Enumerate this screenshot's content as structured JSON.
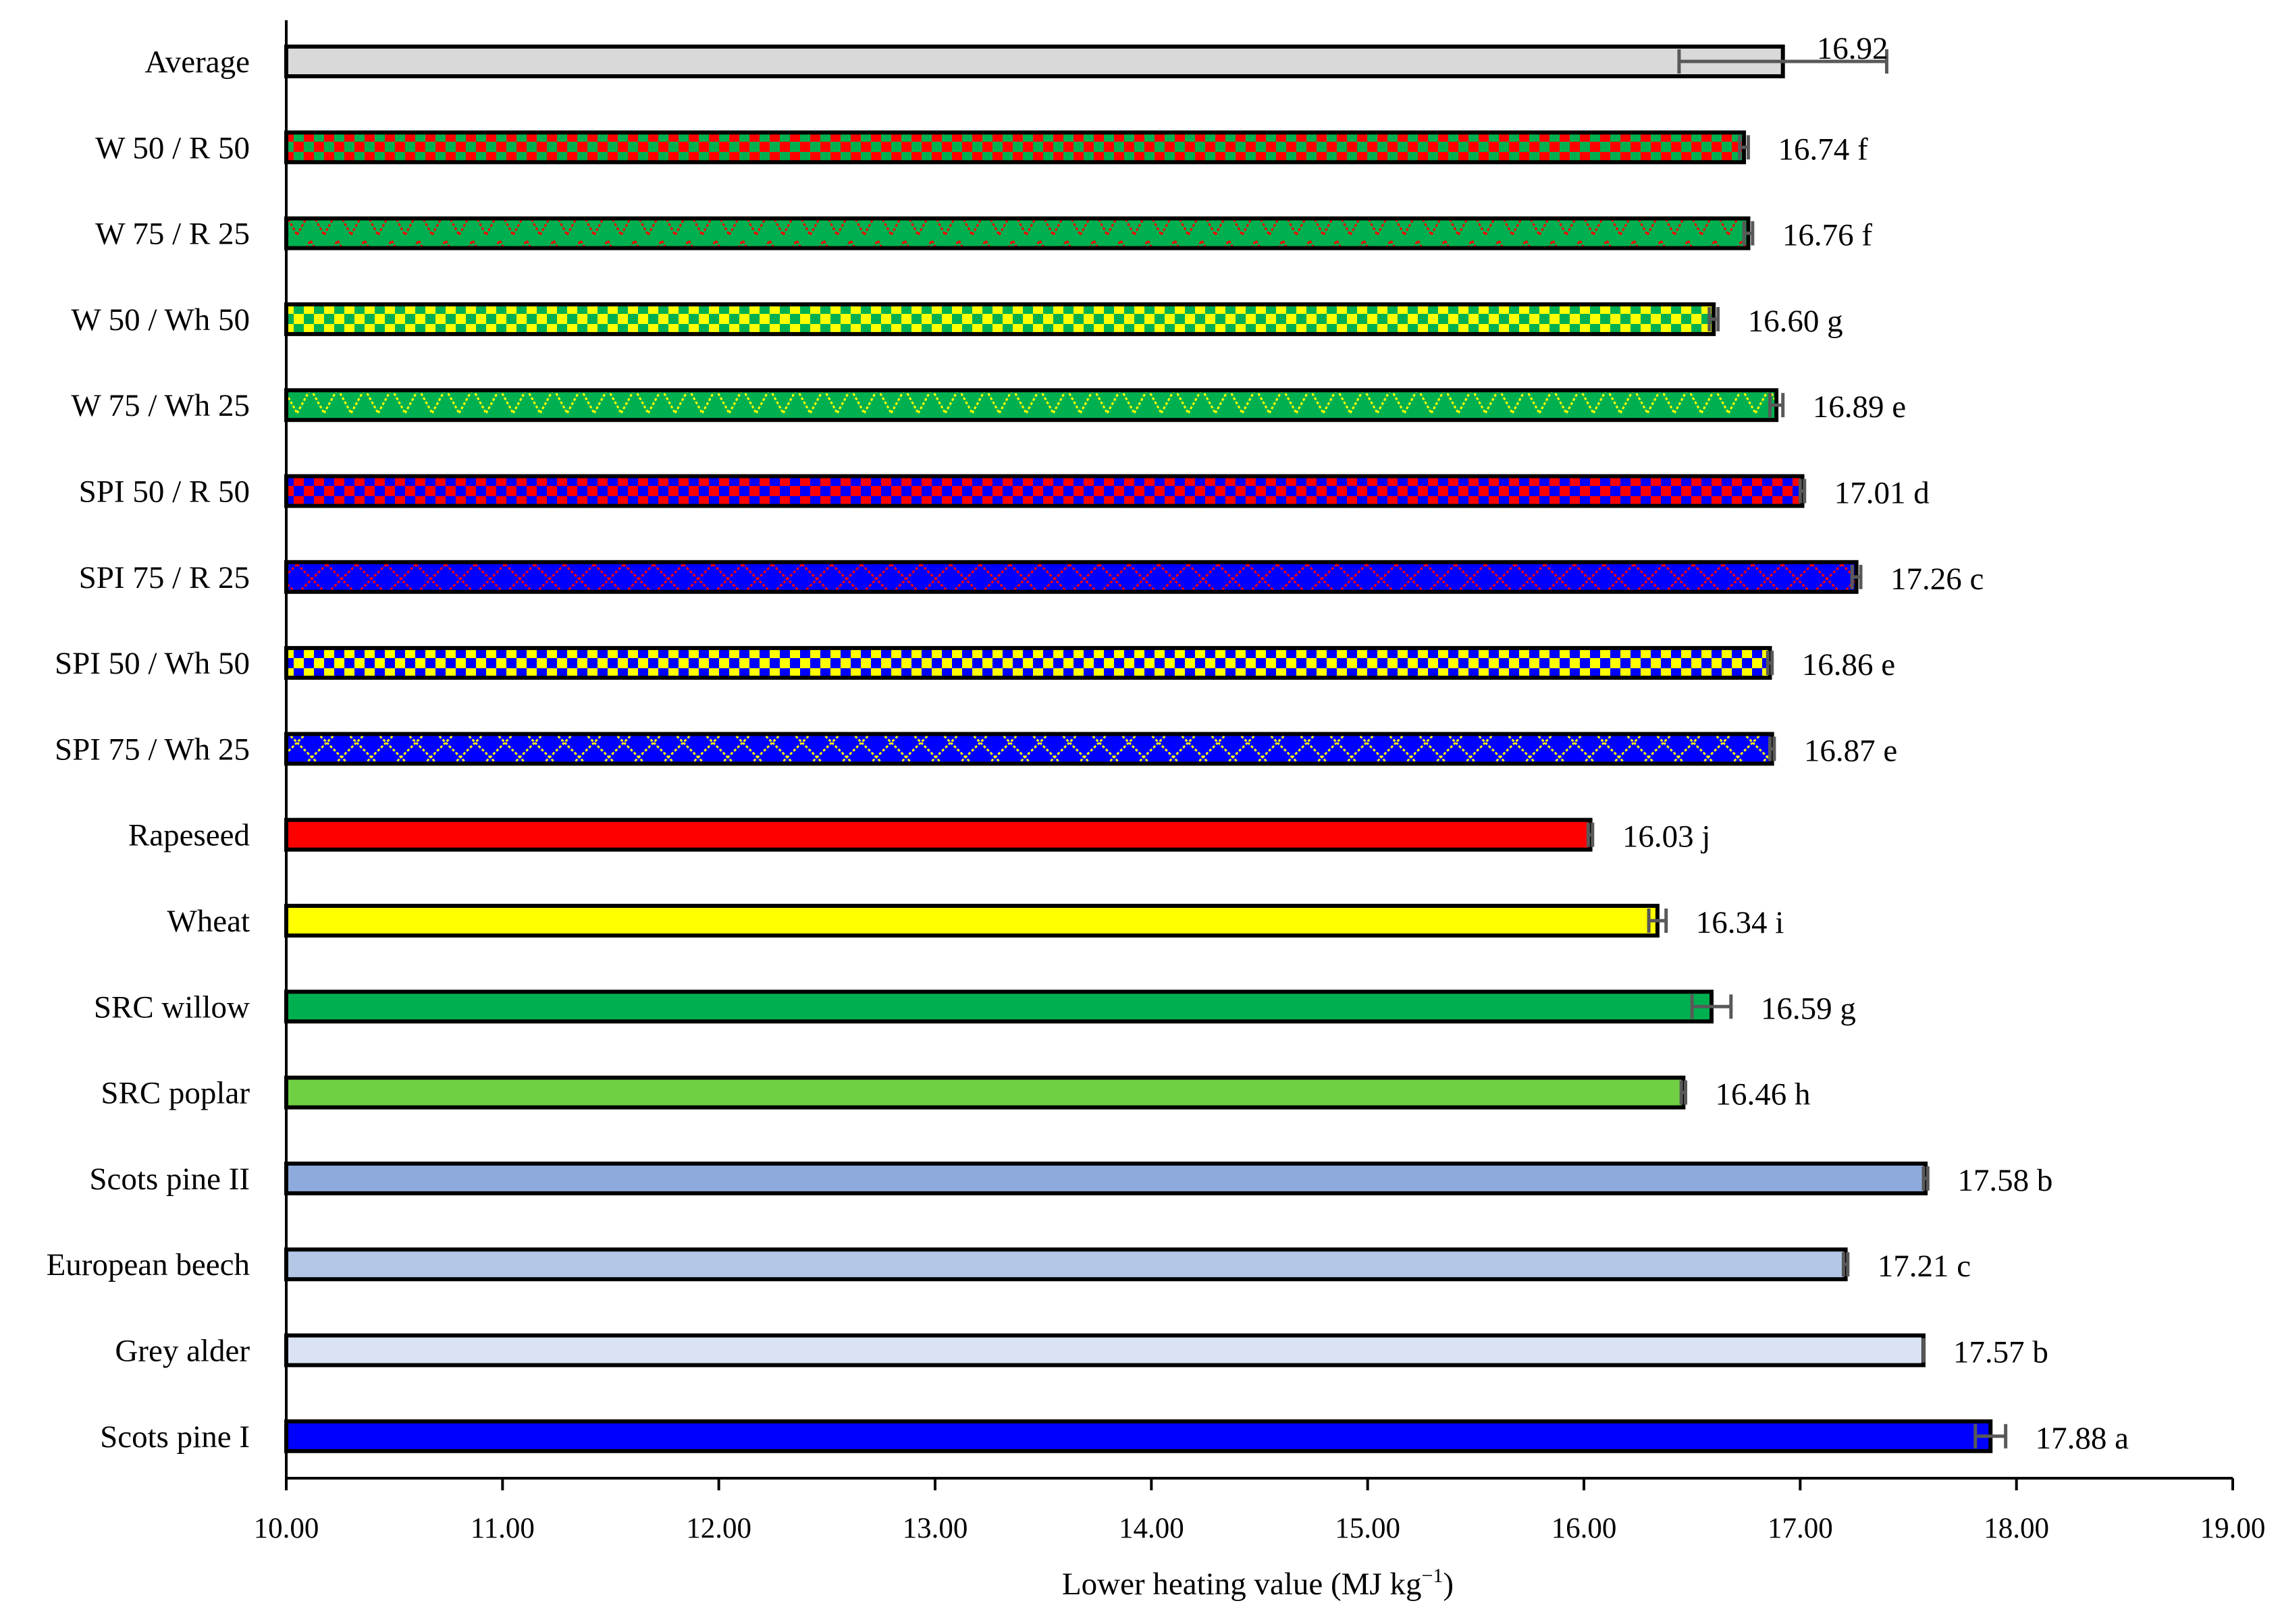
{
  "chart_data": {
    "type": "bar",
    "orientation": "horizontal",
    "xlabel": "Lower heating value (MJ kg",
    "xlabel_sup": "−1",
    "xlabel_close": ")",
    "xlim": [
      10,
      19
    ],
    "ticks": [
      "10.00",
      "11.00",
      "12.00",
      "13.00",
      "14.00",
      "15.00",
      "16.00",
      "17.00",
      "18.00",
      "19.00"
    ],
    "tick_values": [
      10,
      11,
      12,
      13,
      14,
      15,
      16,
      17,
      18,
      19
    ],
    "grid": false,
    "bars": [
      {
        "category": "Average",
        "value": 16.92,
        "error": 0.48,
        "label": "16.92",
        "color": "#d9d9d9",
        "pattern": "solid"
      },
      {
        "category": "W 50 / R 50",
        "value": 16.74,
        "error": 0.02,
        "label": "16.74 f",
        "color": "#00b050",
        "color2": "#ff0000",
        "pattern": "checker"
      },
      {
        "category": "W 75 / R 25",
        "value": 16.76,
        "error": 0.02,
        "label": "16.76 f",
        "color": "#00b050",
        "color2": "#ff0000",
        "pattern": "zigzag"
      },
      {
        "category": "W 50 / Wh 50",
        "value": 16.6,
        "error": 0.02,
        "label": "16.60 g",
        "color": "#ffff00",
        "color2": "#00b050",
        "pattern": "checker"
      },
      {
        "category": "W 75 / Wh 25",
        "value": 16.89,
        "error": 0.03,
        "label": "16.89 e",
        "color": "#00b050",
        "color2": "#ffff00",
        "pattern": "zigzag"
      },
      {
        "category": "SPI 50 / R 50",
        "value": 17.01,
        "error": 0.01,
        "label": "17.01 d",
        "color": "#ff0000",
        "color2": "#0000ff",
        "pattern": "checker"
      },
      {
        "category": "SPI 75 / R 25",
        "value": 17.26,
        "error": 0.02,
        "label": "17.26 c",
        "color": "#0000ff",
        "color2": "#ff0000",
        "pattern": "cross"
      },
      {
        "category": "SPI 50 / Wh 50",
        "value": 16.86,
        "error": 0.01,
        "label": "16.86 e",
        "color": "#ffff00",
        "color2": "#0000ff",
        "pattern": "checker"
      },
      {
        "category": "SPI 75 / Wh 25",
        "value": 16.87,
        "error": 0.01,
        "label": "16.87 e",
        "color": "#0000ff",
        "color2": "#ffff00",
        "pattern": "cross"
      },
      {
        "category": "Rapeseed",
        "value": 16.03,
        "error": 0.01,
        "label": "16.03 j",
        "color": "#ff0000",
        "pattern": "solid"
      },
      {
        "category": "Wheat",
        "value": 16.34,
        "error": 0.04,
        "label": "16.34 i",
        "color": "#ffff00",
        "pattern": "solid"
      },
      {
        "category": "SRC willow",
        "value": 16.59,
        "error": 0.09,
        "label": "16.59 g",
        "color": "#00b050",
        "pattern": "solid"
      },
      {
        "category": "SRC poplar",
        "value": 16.46,
        "error": 0.01,
        "label": "16.46 h",
        "color": "#70d044",
        "pattern": "solid"
      },
      {
        "category": "Scots pine II",
        "value": 17.58,
        "error": 0.01,
        "label": "17.58 b",
        "color": "#8eaadc",
        "pattern": "solid"
      },
      {
        "category": "European beech",
        "value": 17.21,
        "error": 0.01,
        "label": "17.21 c",
        "color": "#b4c7e7",
        "pattern": "solid"
      },
      {
        "category": "Grey alder",
        "value": 17.57,
        "error": 0.0,
        "label": "17.57 b",
        "color": "#dae3f3",
        "pattern": "solid"
      },
      {
        "category": "Scots pine I",
        "value": 17.88,
        "error": 0.07,
        "label": "17.88 a",
        "color": "#0000ff",
        "pattern": "solid"
      }
    ]
  }
}
